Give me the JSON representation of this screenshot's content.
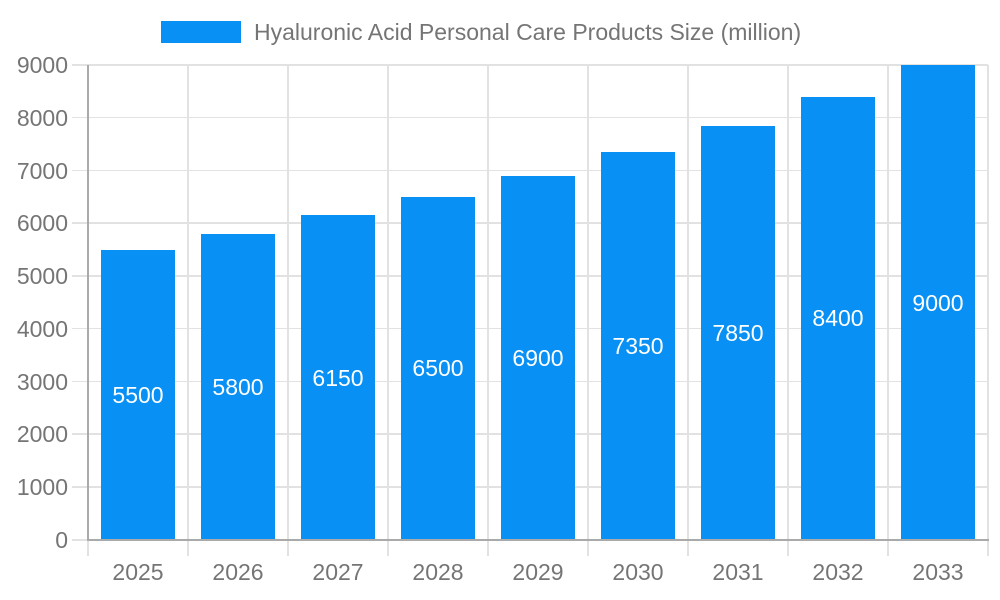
{
  "legend": {
    "label": "Hyaluronic Acid Personal Care Products Size (million)"
  },
  "chart_data": {
    "type": "bar",
    "title": "Hyaluronic Acid Personal Care Products Size (million)",
    "categories": [
      "2025",
      "2026",
      "2027",
      "2028",
      "2029",
      "2030",
      "2031",
      "2032",
      "2033"
    ],
    "values": [
      5500,
      5800,
      6150,
      6500,
      6900,
      7350,
      7850,
      8400,
      9000
    ],
    "ylabel": "",
    "xlabel": "",
    "ylim": [
      0,
      9000
    ],
    "ytick_step": 1000,
    "grid": true,
    "legend_position": "top",
    "value_labels": "inside-center",
    "colors": {
      "bar": "#0890F5",
      "axis_text": "#757575",
      "value_label": "#FFFFFF",
      "gridline": "#E2E2E2",
      "axis_line": "#AAAAAA",
      "background": "#FFFFFF"
    }
  }
}
